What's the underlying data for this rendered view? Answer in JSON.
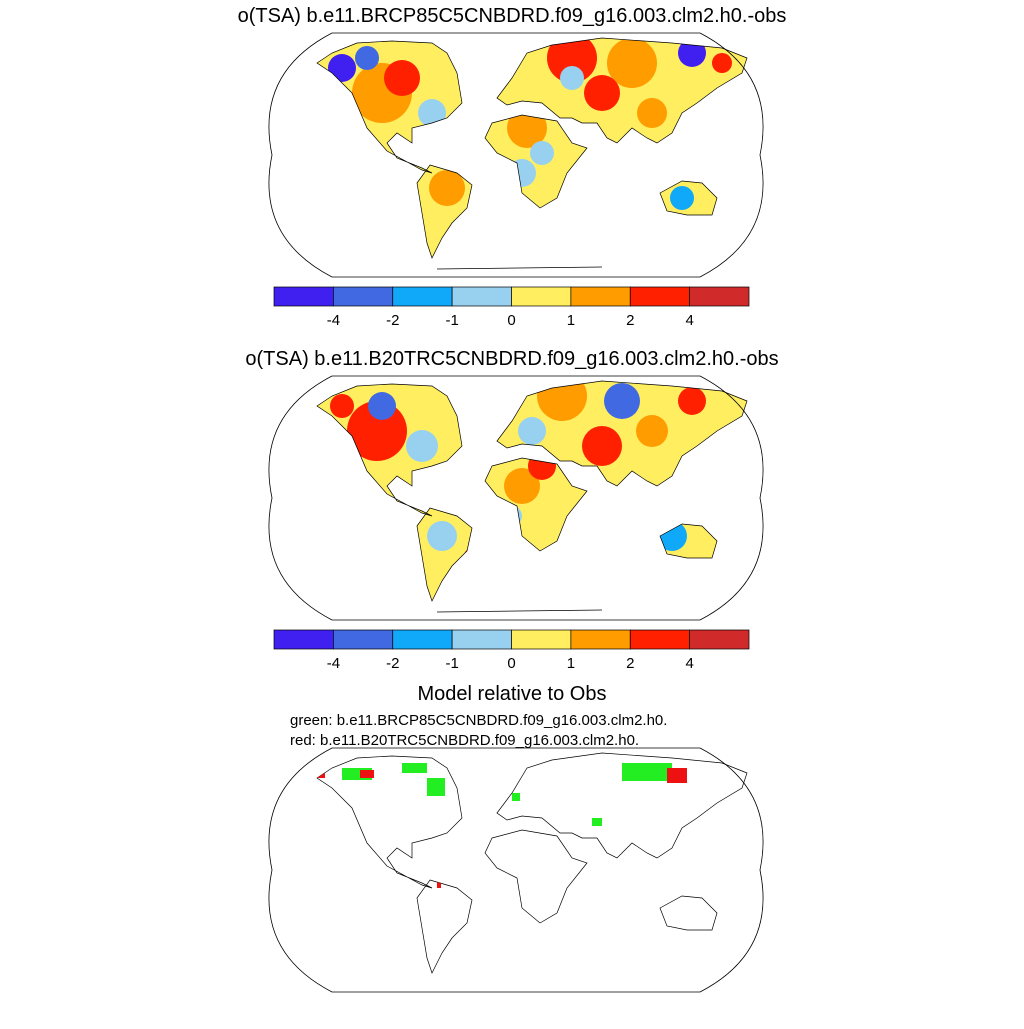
{
  "panels": [
    {
      "title": "o(TSA) b.e11.BRCP85C5CNBDRD.f09_g16.003.clm2.h0.-obs",
      "colorbar": {
        "colors": [
          "#4020f0",
          "#4169e1",
          "#10a8f8",
          "#98d0f0",
          "#ffee60",
          "#ff9c00",
          "#ff2000",
          "#d02a2a"
        ],
        "levels": [
          -4,
          -2,
          -1,
          0,
          1,
          2,
          4
        ]
      }
    },
    {
      "title": "o(TSA) b.e11.B20TRC5CNBDRD.f09_g16.003.clm2.h0.-obs",
      "colorbar": {
        "colors": [
          "#4020f0",
          "#4169e1",
          "#10a8f8",
          "#98d0f0",
          "#ffee60",
          "#ff9c00",
          "#ff2000",
          "#d02a2a"
        ],
        "levels": [
          -4,
          -2,
          -1,
          0,
          1,
          2,
          4
        ]
      }
    }
  ],
  "comparison": {
    "title": "Model relative to Obs",
    "lines": [
      "green: b.e11.BRCP85C5CNBDRD.f09_g16.003.clm2.h0.",
      "red: b.e11.B20TRC5CNBDRD.f09_g16.003.clm2.h0."
    ]
  }
}
